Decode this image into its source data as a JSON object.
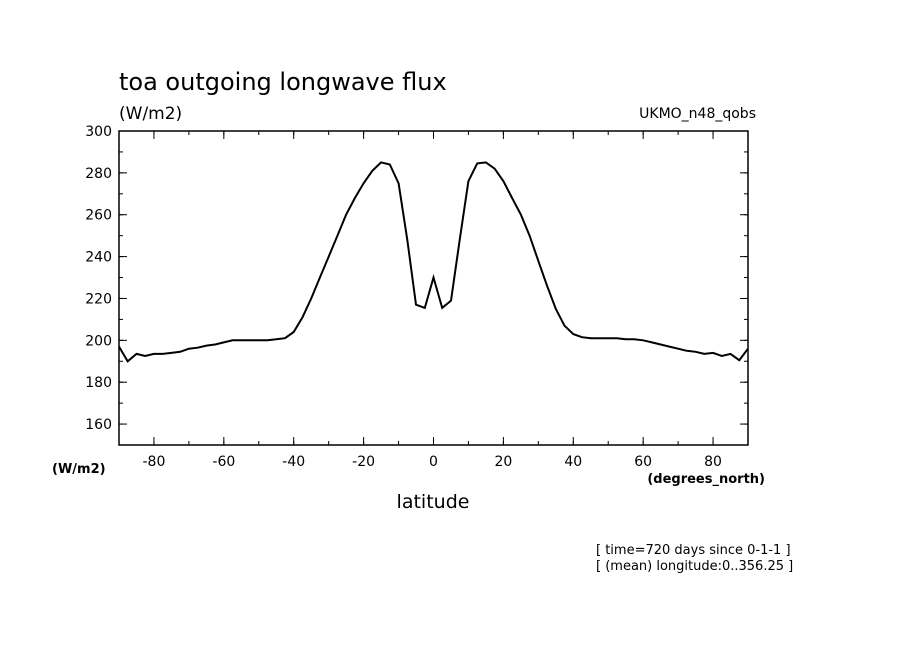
{
  "chart_data": {
    "type": "line",
    "title": "toa outgoing longwave flux",
    "units": "(W/m2)",
    "model": "UKMO_n48_qobs",
    "ylabel": "(W/m2)",
    "xlabel": "latitude",
    "xunits": "(degrees_north)",
    "xlim": [
      -90,
      90
    ],
    "ylim": [
      150,
      300
    ],
    "x_ticks": [
      -80,
      -60,
      -40,
      -20,
      0,
      20,
      40,
      60,
      80
    ],
    "x_tick_labels": [
      "-80",
      "-60",
      "-40",
      "-20",
      "0",
      "20",
      "40",
      "60",
      "80"
    ],
    "y_ticks": [
      160,
      180,
      200,
      220,
      240,
      260,
      280,
      300
    ],
    "y_tick_labels": [
      "160",
      "180",
      "200",
      "220",
      "240",
      "260",
      "280",
      "300"
    ],
    "notes": [
      "[ time=720 days since 0-1-1 ]",
      "[ (mean) longitude:0..356.25 ]"
    ],
    "grid": false,
    "series": [
      {
        "x": [
          -90,
          -87.5,
          -85,
          -82.5,
          -80,
          -77.5,
          -75,
          -72.5,
          -70,
          -67.5,
          -65,
          -62.5,
          -60,
          -57.5,
          -55,
          -52.5,
          -50,
          -47.5,
          -45,
          -42.5,
          -40,
          -37.5,
          -35,
          -32.5,
          -30,
          -27.5,
          -25,
          -22.5,
          -20,
          -17.5,
          -15,
          -12.5,
          -10,
          -7.5,
          -5,
          -2.5,
          0,
          2.5,
          5,
          7.5,
          10,
          12.5,
          15,
          17.5,
          20,
          22.5,
          25,
          27.5,
          30,
          32.5,
          35,
          37.5,
          40,
          42.5,
          45,
          47.5,
          50,
          52.5,
          55,
          57.5,
          60,
          62.5,
          65,
          67.5,
          70,
          72.5,
          75,
          77.5,
          80,
          82.5,
          85,
          87.5,
          90
        ],
        "values": [
          197,
          190,
          193.5,
          192.5,
          193.5,
          193.5,
          194,
          194.5,
          196,
          196.5,
          197.5,
          198,
          199,
          200,
          200,
          200,
          200,
          200,
          200.5,
          201,
          204,
          211,
          220,
          230,
          240,
          250,
          260,
          268,
          275,
          281,
          285,
          284,
          275,
          248,
          217,
          215.5,
          230,
          215.5,
          219,
          248,
          276,
          284.5,
          285,
          282,
          276,
          268,
          260,
          250,
          238,
          226,
          215,
          207,
          203,
          201.5,
          201,
          201,
          201,
          201,
          200.5,
          200.5,
          200,
          199,
          198,
          197,
          196,
          195,
          194.5,
          193.5,
          194,
          192.5,
          193.5,
          190.5,
          196
        ]
      }
    ]
  }
}
